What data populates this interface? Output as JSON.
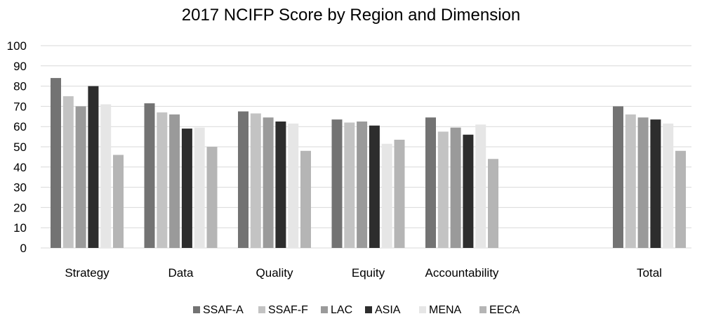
{
  "chart_data": {
    "type": "bar",
    "title": "2017 NCIFP Score by Region and Dimension",
    "xlabel": "",
    "ylabel": "",
    "ylim": [
      0,
      100
    ],
    "yticks": [
      0,
      10,
      20,
      30,
      40,
      50,
      60,
      70,
      80,
      90,
      100
    ],
    "grid": true,
    "legend_position": "bottom",
    "categories": [
      "Strategy",
      "Data",
      "Quality",
      "Equity",
      "Accountability",
      "Total"
    ],
    "series": [
      {
        "name": "SSAF-A",
        "color": "#737373",
        "values": [
          84,
          71.5,
          67.5,
          63.5,
          64.5,
          70
        ]
      },
      {
        "name": "SSAF-F",
        "color": "#c3c3c3",
        "values": [
          75,
          67,
          66.5,
          62,
          57.5,
          66
        ]
      },
      {
        "name": "LAC",
        "color": "#9a9a9a",
        "values": [
          70,
          66,
          64.5,
          62.5,
          59.5,
          64.5
        ]
      },
      {
        "name": "ASIA",
        "color": "#2d2d2d",
        "values": [
          80,
          59,
          62.5,
          60.5,
          56,
          63.5
        ]
      },
      {
        "name": "MENA",
        "color": "#e6e6e6",
        "values": [
          71,
          59.5,
          61.5,
          51.5,
          61,
          61.5
        ]
      },
      {
        "name": "EECA",
        "color": "#b5b5b5",
        "values": [
          46,
          50,
          48,
          53.5,
          44,
          48
        ]
      }
    ]
  }
}
